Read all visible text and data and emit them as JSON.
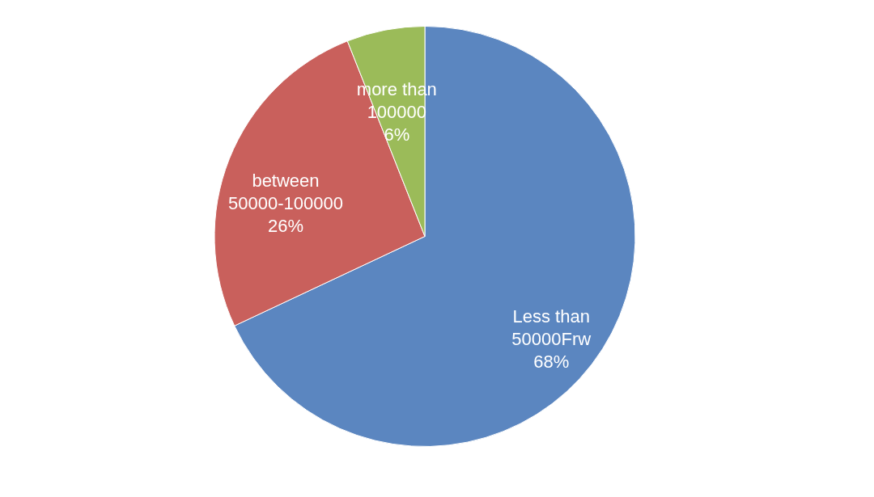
{
  "chart_data": {
    "type": "pie",
    "categories": [
      "Less than 50000Frw",
      "between 50000-100000",
      "more than 100000"
    ],
    "values": [
      68,
      26,
      6
    ],
    "colors": [
      "#5b86c0",
      "#c9605c",
      "#9bbb59"
    ],
    "value_labels": [
      "68%",
      "26%",
      "6%"
    ],
    "legend": false
  }
}
